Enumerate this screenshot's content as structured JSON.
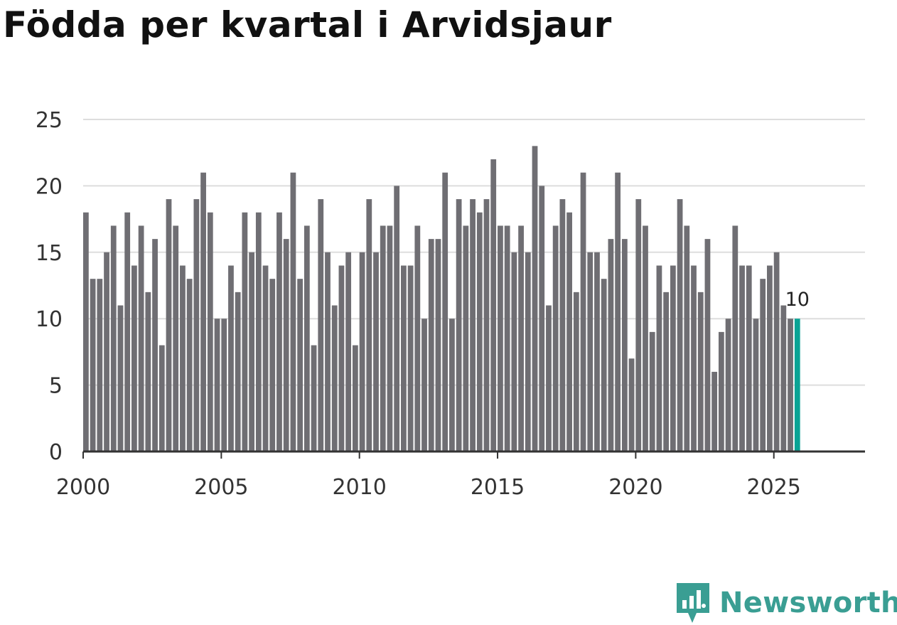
{
  "title": "Födda per kvartal i Arvidsjaur",
  "brand": {
    "name": "Newsworthy",
    "color": "#3a9e93"
  },
  "colors": {
    "bar": "#6f6e73",
    "highlight": "#0aa395",
    "grid": "#dddddd",
    "axis": "#333333"
  },
  "chart_data": {
    "type": "bar",
    "title": "Födda per kvartal i Arvidsjaur",
    "xlabel": "",
    "ylabel": "",
    "x_start": 2000,
    "x_step": 0.25,
    "xlim": [
      2000,
      2028.3
    ],
    "ylim": [
      0,
      25
    ],
    "grid": true,
    "y_ticks": [
      0,
      5,
      10,
      15,
      20,
      25
    ],
    "y_tick_labels": [
      "0",
      "5",
      "10",
      "15",
      "20",
      "25"
    ],
    "x_ticks": [
      2000,
      2005,
      2010,
      2015,
      2020,
      2025
    ],
    "x_tick_labels": [
      "2000",
      "2005",
      "2010",
      "2015",
      "2020",
      "2025"
    ],
    "highlight_index": 103,
    "highlight_label": "10",
    "series": [
      {
        "name": "Födda",
        "values": [
          18,
          13,
          13,
          15,
          17,
          11,
          18,
          14,
          17,
          12,
          16,
          8,
          19,
          17,
          14,
          13,
          19,
          21,
          18,
          10,
          10,
          14,
          12,
          18,
          15,
          18,
          14,
          13,
          18,
          16,
          21,
          13,
          17,
          8,
          19,
          15,
          11,
          14,
          15,
          8,
          15,
          19,
          15,
          17,
          17,
          20,
          14,
          14,
          17,
          10,
          16,
          16,
          21,
          10,
          19,
          17,
          19,
          18,
          19,
          22,
          17,
          17,
          15,
          17,
          15,
          23,
          20,
          11,
          17,
          19,
          18,
          12,
          21,
          15,
          15,
          13,
          16,
          21,
          16,
          7,
          19,
          17,
          9,
          14,
          12,
          14,
          19,
          17,
          14,
          12,
          16,
          6,
          9,
          10,
          17,
          14,
          14,
          10,
          13,
          14,
          15,
          11,
          10,
          10
        ]
      }
    ]
  }
}
